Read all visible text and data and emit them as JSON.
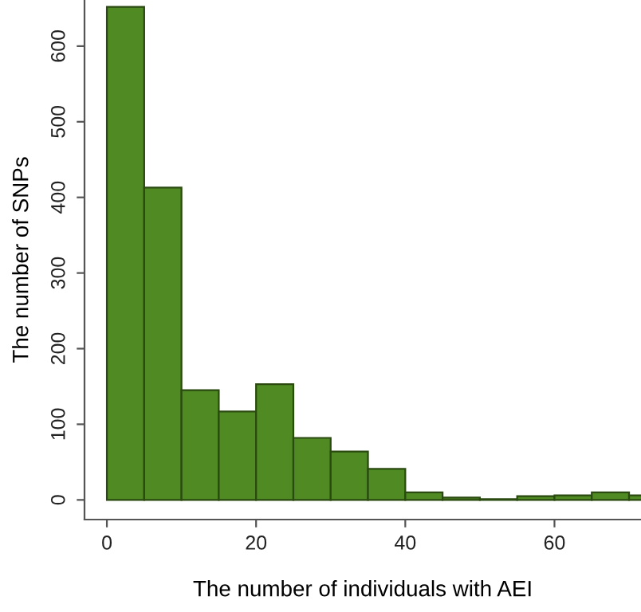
{
  "chart_data": {
    "type": "histogram",
    "xlabel": "The number of individuals with AEI",
    "ylabel": "The number of SNPs",
    "bins": [
      0,
      5,
      10,
      15,
      20,
      25,
      30,
      35,
      40,
      45,
      50,
      55,
      60,
      65,
      70,
      75
    ],
    "values": [
      652,
      413,
      145,
      117,
      153,
      82,
      64,
      41,
      10,
      3,
      1,
      5,
      6,
      10,
      6
    ],
    "color": "#4f8a22",
    "xlim": [
      -3,
      71.6
    ],
    "ylim": [
      -26,
      661
    ],
    "xticks": [
      0,
      20,
      40,
      60
    ],
    "yticks": [
      0,
      100,
      200,
      300,
      400,
      500,
      600
    ],
    "grid": false
  }
}
